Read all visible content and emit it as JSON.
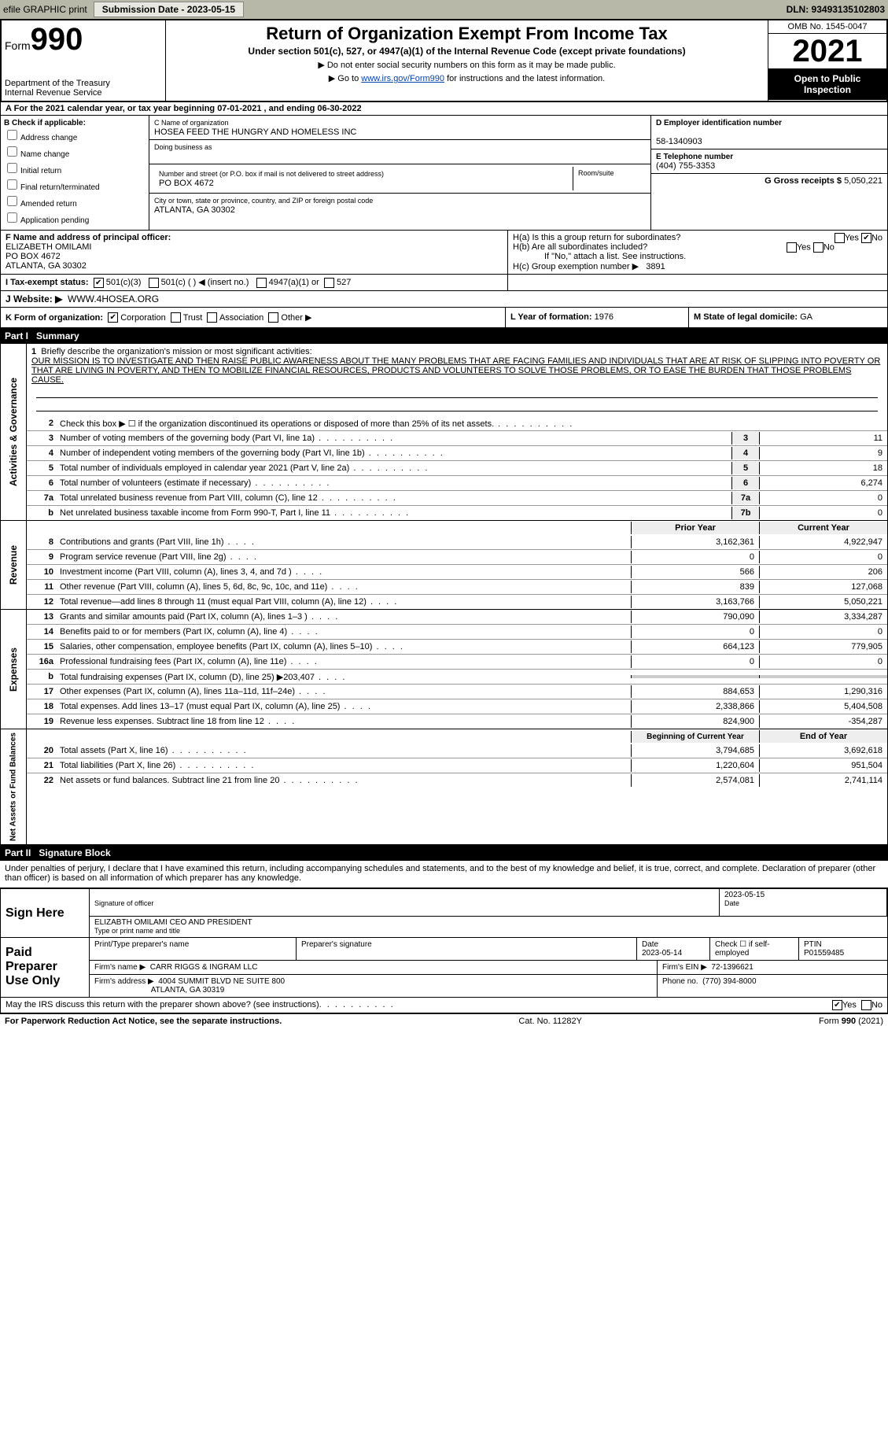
{
  "topbar": {
    "efile": "efile GRAPHIC print",
    "submission_label": "Submission Date - 2023-05-15",
    "dln_label": "DLN: 93493135102803"
  },
  "header": {
    "form_prefix": "Form",
    "form_num": "990",
    "dept": "Department of the Treasury",
    "irs": "Internal Revenue Service",
    "title": "Return of Organization Exempt From Income Tax",
    "subtitle": "Under section 501(c), 527, or 4947(a)(1) of the Internal Revenue Code (except private foundations)",
    "note1": "▶ Do not enter social security numbers on this form as it may be made public.",
    "note2_pre": "▶ Go to ",
    "note2_link": "www.irs.gov/Form990",
    "note2_post": " for instructions and the latest information.",
    "omb": "OMB No. 1545-0047",
    "year": "2021",
    "inspection": "Open to Public Inspection"
  },
  "row_a": "A For the 2021 calendar year, or tax year beginning 07-01-2021   , and ending 06-30-2022",
  "section_b": {
    "label": "B Check if applicable:",
    "opts": [
      "Address change",
      "Name change",
      "Initial return",
      "Final return/terminated",
      "Amended return",
      "Application pending"
    ]
  },
  "section_c": {
    "name_lbl": "C Name of organization",
    "name": "HOSEA FEED THE HUNGRY AND HOMELESS INC",
    "dba_lbl": "Doing business as",
    "dba": "",
    "street_lbl": "Number and street (or P.O. box if mail is not delivered to street address)",
    "street": "PO BOX 4672",
    "room_lbl": "Room/suite",
    "city_lbl": "City or town, state or province, country, and ZIP or foreign postal code",
    "city": "ATLANTA, GA  30302"
  },
  "section_d": {
    "ein_lbl": "D Employer identification number",
    "ein": "58-1340903",
    "tel_lbl": "E Telephone number",
    "tel": "(404) 755-3353",
    "gross_lbl": "G Gross receipts $",
    "gross": "5,050,221"
  },
  "section_f": {
    "lbl": "F Name and address of principal officer:",
    "name": "ELIZABETH OMILAMI",
    "addr1": "PO BOX 4672",
    "addr2": "ATLANTA, GA  30302"
  },
  "section_h": {
    "ha": "H(a)  Is this a group return for subordinates?",
    "hb": "H(b)  Are all subordinates included?",
    "hb_note": "If \"No,\" attach a list. See instructions.",
    "hc": "H(c)  Group exemption number ▶",
    "hc_val": "3891"
  },
  "section_i": {
    "lbl": "I   Tax-exempt status:",
    "o1": "501(c)(3)",
    "o2": "501(c) (  ) ◀ (insert no.)",
    "o3": "4947(a)(1) or",
    "o4": "527"
  },
  "section_j": {
    "lbl": "J   Website: ▶",
    "val": "WWW.4HOSEA.ORG"
  },
  "section_k": {
    "lbl": "K Form of organization:",
    "o1": "Corporation",
    "o2": "Trust",
    "o3": "Association",
    "o4": "Other ▶"
  },
  "section_l": {
    "lbl": "L Year of formation:",
    "val": "1976"
  },
  "section_m": {
    "lbl": "M State of legal domicile:",
    "val": "GA"
  },
  "part1": {
    "num": "Part I",
    "title": "Summary"
  },
  "mission": {
    "num": "1",
    "lbl": "Briefly describe the organization's mission or most significant activities:",
    "text": "OUR MISSION IS TO INVESTIGATE AND THEN RAISE PUBLIC AWARENESS ABOUT THE MANY PROBLEMS THAT ARE FACING FAMILIES AND INDIVIDUALS THAT ARE AT RISK OF SLIPPING INTO POVERTY OR THAT ARE LIVING IN POVERTY, AND THEN TO MOBILIZE FINANCIAL RESOURCES, PRODUCTS AND VOLUNTEERS TO SOLVE THOSE PROBLEMS, OR TO EASE THE BURDEN THAT THOSE PROBLEMS CAUSE."
  },
  "gov_lines": [
    {
      "n": "2",
      "d": "Check this box ▶ ☐ if the organization discontinued its operations or disposed of more than 25% of its net assets.",
      "b": "",
      "v": ""
    },
    {
      "n": "3",
      "d": "Number of voting members of the governing body (Part VI, line 1a)",
      "b": "3",
      "v": "11"
    },
    {
      "n": "4",
      "d": "Number of independent voting members of the governing body (Part VI, line 1b)",
      "b": "4",
      "v": "9"
    },
    {
      "n": "5",
      "d": "Total number of individuals employed in calendar year 2021 (Part V, line 2a)",
      "b": "5",
      "v": "18"
    },
    {
      "n": "6",
      "d": "Total number of volunteers (estimate if necessary)",
      "b": "6",
      "v": "6,274"
    },
    {
      "n": "7a",
      "d": "Total unrelated business revenue from Part VIII, column (C), line 12",
      "b": "7a",
      "v": "0"
    },
    {
      "n": "b",
      "d": "Net unrelated business taxable income from Form 990-T, Part I, line 11",
      "b": "7b",
      "v": "0"
    }
  ],
  "col_headers": {
    "prior": "Prior Year",
    "current": "Current Year"
  },
  "revenue": [
    {
      "n": "8",
      "d": "Contributions and grants (Part VIII, line 1h)",
      "p": "3,162,361",
      "c": "4,922,947"
    },
    {
      "n": "9",
      "d": "Program service revenue (Part VIII, line 2g)",
      "p": "0",
      "c": "0"
    },
    {
      "n": "10",
      "d": "Investment income (Part VIII, column (A), lines 3, 4, and 7d )",
      "p": "566",
      "c": "206"
    },
    {
      "n": "11",
      "d": "Other revenue (Part VIII, column (A), lines 5, 6d, 8c, 9c, 10c, and 11e)",
      "p": "839",
      "c": "127,068"
    },
    {
      "n": "12",
      "d": "Total revenue—add lines 8 through 11 (must equal Part VIII, column (A), line 12)",
      "p": "3,163,766",
      "c": "5,050,221"
    }
  ],
  "expenses": [
    {
      "n": "13",
      "d": "Grants and similar amounts paid (Part IX, column (A), lines 1–3 )",
      "p": "790,090",
      "c": "3,334,287"
    },
    {
      "n": "14",
      "d": "Benefits paid to or for members (Part IX, column (A), line 4)",
      "p": "0",
      "c": "0"
    },
    {
      "n": "15",
      "d": "Salaries, other compensation, employee benefits (Part IX, column (A), lines 5–10)",
      "p": "664,123",
      "c": "779,905"
    },
    {
      "n": "16a",
      "d": "Professional fundraising fees (Part IX, column (A), line 11e)",
      "p": "0",
      "c": "0"
    },
    {
      "n": "b",
      "d": "Total fundraising expenses (Part IX, column (D), line 25) ▶203,407",
      "p": "",
      "c": "",
      "grey": true
    },
    {
      "n": "17",
      "d": "Other expenses (Part IX, column (A), lines 11a–11d, 11f–24e)",
      "p": "884,653",
      "c": "1,290,316"
    },
    {
      "n": "18",
      "d": "Total expenses. Add lines 13–17 (must equal Part IX, column (A), line 25)",
      "p": "2,338,866",
      "c": "5,404,508"
    },
    {
      "n": "19",
      "d": "Revenue less expenses. Subtract line 18 from line 12",
      "p": "824,900",
      "c": "-354,287"
    }
  ],
  "na_headers": {
    "begin": "Beginning of Current Year",
    "end": "End of Year"
  },
  "netassets": [
    {
      "n": "20",
      "d": "Total assets (Part X, line 16)",
      "p": "3,794,685",
      "c": "3,692,618"
    },
    {
      "n": "21",
      "d": "Total liabilities (Part X, line 26)",
      "p": "1,220,604",
      "c": "951,504"
    },
    {
      "n": "22",
      "d": "Net assets or fund balances. Subtract line 21 from line 20",
      "p": "2,574,081",
      "c": "2,741,114"
    }
  ],
  "part2": {
    "num": "Part II",
    "title": "Signature Block"
  },
  "sig": {
    "penalty": "Under penalties of perjury, I declare that I have examined this return, including accompanying schedules and statements, and to the best of my knowledge and belief, it is true, correct, and complete. Declaration of preparer (other than officer) is based on all information of which preparer has any knowledge.",
    "sign_here": "Sign Here",
    "sig_officer": "Signature of officer",
    "date": "Date",
    "date_val": "2023-05-15",
    "name": "ELIZABTH OMILAMI CEO AND PRESIDENT",
    "type_name": "Type or print name and title"
  },
  "preparer": {
    "label1": "Paid",
    "label2": "Preparer",
    "label3": "Use Only",
    "print_name_lbl": "Print/Type preparer's name",
    "print_name": "",
    "sig_lbl": "Preparer's signature",
    "date_lbl": "Date",
    "date": "2023-05-14",
    "check_lbl": "Check ☐ if self-employed",
    "ptin_lbl": "PTIN",
    "ptin": "P01559485",
    "firm_name_lbl": "Firm's name    ▶",
    "firm_name": "CARR RIGGS & INGRAM LLC",
    "firm_ein_lbl": "Firm's EIN ▶",
    "firm_ein": "72-1396621",
    "firm_addr_lbl": "Firm's address ▶",
    "firm_addr1": "4004 SUMMIT BLVD NE SUITE 800",
    "firm_addr2": "ATLANTA, GA  30319",
    "phone_lbl": "Phone no.",
    "phone": "(770) 394-8000"
  },
  "discuss": "May the IRS discuss this return with the preparer shown above? (see instructions)",
  "footer": {
    "left": "For Paperwork Reduction Act Notice, see the separate instructions.",
    "mid": "Cat. No. 11282Y",
    "right": "Form 990 (2021)"
  },
  "tabs": {
    "gov": "Activities & Governance",
    "rev": "Revenue",
    "exp": "Expenses",
    "na": "Net Assets or Fund Balances"
  }
}
